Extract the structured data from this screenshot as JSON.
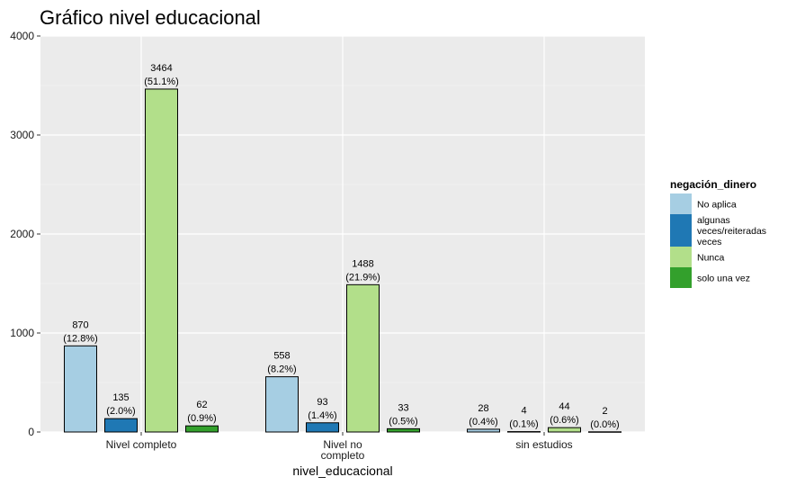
{
  "chart_data": {
    "type": "bar",
    "title": "Gráfico nivel educacional",
    "xlabel": "nivel_educacional",
    "ylabel": "",
    "ylim": [
      0,
      4000
    ],
    "yticks": [
      0,
      1000,
      2000,
      3000,
      4000
    ],
    "categories": [
      "Nivel completo",
      "Nivel no completo",
      "sin estudios"
    ],
    "category_tick_labels": [
      [
        "Nivel completo"
      ],
      [
        "Nivel no",
        "completo"
      ],
      [
        "sin estudios"
      ]
    ],
    "legend": {
      "title": "negación_dinero",
      "position": "right"
    },
    "grid": true,
    "series": [
      {
        "name": "No aplica",
        "legend_lines": [
          "No aplica"
        ],
        "color": "#A6CEE3",
        "values": [
          870,
          558,
          28
        ],
        "percent_labels": [
          "(12.8%)",
          "(8.2%)",
          "(0.4%)"
        ]
      },
      {
        "name": "algunas veces/reiteradas veces",
        "legend_lines": [
          "algunas",
          "veces/reiteradas",
          "veces"
        ],
        "color": "#1F78B4",
        "values": [
          135,
          93,
          4
        ],
        "percent_labels": [
          "(2.0%)",
          "(1.4%)",
          "(0.1%)"
        ]
      },
      {
        "name": "Nunca",
        "legend_lines": [
          "Nunca"
        ],
        "color": "#B2DF8A",
        "values": [
          3464,
          1488,
          44
        ],
        "percent_labels": [
          "(51.1%)",
          "(21.9%)",
          "(0.6%)"
        ]
      },
      {
        "name": "solo una vez",
        "legend_lines": [
          "solo una vez"
        ],
        "color": "#33A02C",
        "values": [
          62,
          33,
          2
        ],
        "percent_labels": [
          "(0.9%)",
          "(0.5%)",
          "(0.0%)"
        ]
      }
    ]
  }
}
